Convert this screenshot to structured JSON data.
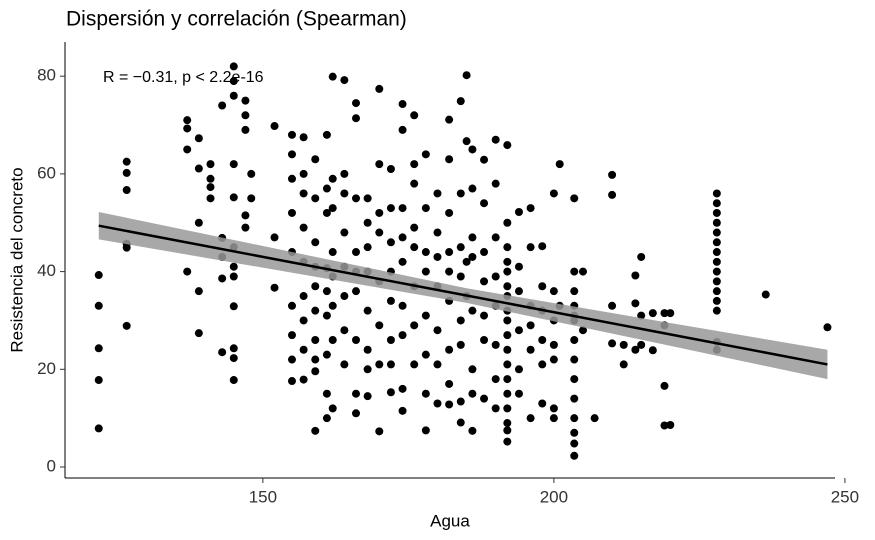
{
  "chart_data": {
    "type": "scatter",
    "title": "Dispersión y correlación (Spearman)",
    "x_label": "Agua",
    "y_label": "Resistencia del concreto",
    "annotation": "R = −0.31, p < 2.2e-16",
    "xlim": [
      116,
      248.3
    ],
    "ylim": [
      -2.25,
      87
    ],
    "xticks": [
      150,
      200,
      250
    ],
    "yticks": [
      0,
      20,
      40,
      60,
      80
    ],
    "grid": false,
    "fit": {
      "color": "#000000",
      "band_color": "#999999",
      "x": [
        121.8,
        185,
        247
      ],
      "values": [
        49.4,
        35.1,
        21.0
      ],
      "lower": [
        46.6,
        33.6,
        18.0
      ],
      "upper": [
        52.2,
        36.6,
        24.0
      ]
    },
    "series": [
      {
        "color": "#000000",
        "x": [
          121.8,
          121.8,
          121.8,
          121.8,
          121.8,
          126.6,
          126.6,
          126.6,
          126.6,
          126.6,
          126.6,
          137,
          137,
          137,
          137,
          139,
          139,
          139,
          139,
          139,
          141,
          141,
          141,
          141,
          143,
          143,
          143,
          143,
          143,
          145,
          145,
          145,
          145,
          145,
          145,
          145,
          145,
          145,
          145,
          145,
          145,
          147,
          147,
          147,
          147,
          147,
          148,
          148,
          152,
          152,
          152,
          155,
          155,
          155,
          155,
          155,
          155,
          155,
          155,
          155,
          157,
          157,
          157,
          157,
          157,
          157,
          157,
          157,
          157,
          159,
          159,
          159,
          159,
          159,
          159,
          159,
          159,
          159,
          159,
          161,
          161,
          161,
          161,
          161,
          161,
          161,
          161,
          161,
          162,
          162,
          162,
          162,
          162,
          162,
          162,
          162,
          164,
          164,
          164,
          164,
          164,
          164,
          164,
          164,
          166,
          166,
          166,
          166,
          166,
          166,
          166,
          166,
          166,
          168,
          168,
          168,
          168,
          168,
          168,
          168,
          168,
          170,
          170,
          170,
          170,
          170,
          170,
          170,
          170,
          172,
          172,
          172,
          172,
          172,
          172,
          172,
          172,
          174,
          174,
          174,
          174,
          174,
          174,
          174,
          174,
          174,
          176,
          176,
          176,
          176,
          176,
          176,
          176,
          176,
          178,
          178,
          178,
          178,
          178,
          178,
          178,
          178,
          180,
          180,
          180,
          180,
          180,
          180,
          180,
          182,
          182,
          182,
          182,
          182,
          182,
          182,
          182,
          182,
          184,
          184,
          184,
          184,
          184,
          184,
          184,
          184,
          185,
          185,
          185,
          185,
          186,
          186,
          186,
          186,
          186,
          186,
          186,
          186,
          188,
          188,
          188,
          188,
          188,
          188,
          188,
          190,
          190,
          190,
          190,
          190,
          190,
          190,
          190,
          192,
          192,
          192,
          192,
          192,
          192,
          192,
          192,
          192,
          192,
          192,
          192,
          192,
          192,
          192,
          192,
          192,
          192,
          194,
          194,
          194,
          194,
          194,
          194,
          196,
          196,
          196,
          196,
          196,
          196,
          198,
          198,
          198,
          198,
          198,
          198,
          200,
          200,
          200,
          200,
          200,
          200,
          200,
          201,
          201,
          203.5,
          203.5,
          203.5,
          203.5,
          203.5,
          203.5,
          203.5,
          203.5,
          203.5,
          203.5,
          203.5,
          203.5,
          203.5,
          203.5,
          205,
          205,
          207,
          210,
          210,
          210,
          210,
          212,
          212,
          214,
          214,
          214,
          215,
          215,
          215,
          217,
          217,
          219,
          219,
          219,
          219,
          220,
          220,
          228,
          228,
          228,
          228,
          228,
          228,
          228,
          228,
          228,
          228,
          228,
          228,
          228,
          228,
          228,
          236.4,
          247
        ],
        "values": [
          7.9,
          17.8,
          24.3,
          33,
          39.3,
          28.9,
          44.9,
          45.7,
          56.7,
          60.2,
          62.5,
          40,
          69.3,
          71,
          65,
          27.4,
          36,
          50,
          67.3,
          61.1,
          55,
          57.3,
          59,
          62,
          23.5,
          46.9,
          43,
          38.6,
          74,
          79,
          82,
          76,
          62,
          55.2,
          45,
          41,
          39,
          32.9,
          24.3,
          22.3,
          17.8,
          75,
          72,
          69,
          51.5,
          49,
          60,
          55,
          69.8,
          36.7,
          47,
          68,
          64,
          59,
          52,
          44,
          33,
          27,
          22,
          17.6,
          67.5,
          60,
          56,
          49,
          42,
          35,
          30,
          24,
          17.9,
          63,
          55,
          46,
          41,
          37,
          32,
          26,
          22,
          19.6,
          7.4,
          68,
          57,
          52,
          40.7,
          36,
          31,
          23,
          15,
          10,
          79.9,
          59,
          53,
          44,
          39,
          33,
          26,
          12,
          79.2,
          60,
          56,
          48,
          41,
          35,
          28,
          21,
          74.5,
          71.4,
          55,
          44,
          40,
          36,
          26,
          15,
          11,
          55,
          50,
          45,
          40,
          32,
          24,
          20,
          14.5,
          77.4,
          62,
          52,
          48,
          38,
          29,
          21,
          7.3,
          61,
          53,
          46,
          40,
          34,
          26,
          21,
          15.3,
          74.3,
          69,
          53,
          47,
          42,
          33,
          27,
          16,
          11.5,
          72,
          62,
          58,
          49,
          45,
          37,
          29,
          21,
          64,
          53,
          44,
          40,
          31,
          23,
          15,
          7.5,
          56,
          48,
          43,
          37,
          28,
          21,
          13,
          71.1,
          63,
          52,
          44,
          40,
          34,
          24,
          17,
          12.8,
          74.9,
          56,
          45,
          39,
          30,
          25,
          13.4,
          9.1,
          80.2,
          66.7,
          42,
          35,
          65,
          57,
          47,
          43,
          32,
          20,
          15,
          7.4,
          62.9,
          54,
          44,
          38,
          31,
          26,
          14,
          67,
          58,
          47,
          39,
          33,
          25,
          18,
          12,
          65.9,
          50,
          45,
          42,
          40,
          37,
          35,
          32,
          30,
          27,
          24,
          21,
          18,
          15,
          12,
          9,
          7.5,
          5.2,
          52.2,
          41,
          36,
          28,
          20,
          15,
          53,
          45,
          33,
          29,
          24,
          10,
          45.2,
          37,
          32,
          26,
          21,
          13,
          56,
          36,
          30,
          25,
          22,
          12,
          10,
          62,
          33,
          55,
          40,
          36,
          33,
          31,
          30,
          26,
          22,
          18,
          14,
          10,
          7,
          4.8,
          2.3,
          40,
          28,
          10,
          59.8,
          55.7,
          33,
          25.3,
          25,
          21,
          39.2,
          33.5,
          24,
          43,
          31,
          25,
          31.5,
          23.9,
          31.5,
          29,
          16.6,
          8.5,
          31.5,
          8.6,
          56,
          54,
          52,
          50,
          48,
          46,
          44,
          42,
          40,
          38,
          36,
          34,
          32,
          25.6,
          24,
          35.3,
          28.6
        ]
      }
    ]
  }
}
